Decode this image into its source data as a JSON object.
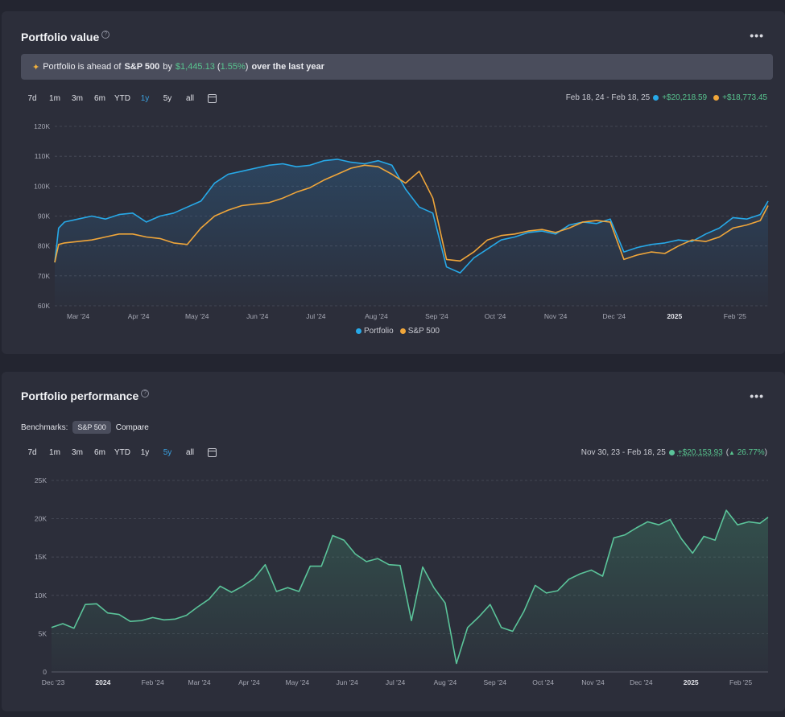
{
  "colors": {
    "portfolio": "#27a9e8",
    "sp500": "#f0a63a",
    "performance": "#5bc49a",
    "positive": "#58c58f",
    "active_range": "#3aa1e0"
  },
  "value_card": {
    "title": "Portfolio value",
    "help_icon": "question-circle-icon",
    "more_icon": "ellipsis-icon",
    "banner": {
      "icon": "party-popper-icon",
      "prefix": "Portfolio is ahead of",
      "benchmark": "S&P 500",
      "by": "by",
      "amount": "$1,445.13",
      "pct_open": "(",
      "pct": "1.55%",
      "pct_close": ")",
      "suffix": "over the last year"
    },
    "ranges": [
      "7d",
      "1m",
      "3m",
      "6m",
      "YTD",
      "1y",
      "5y",
      "all"
    ],
    "active_range": "1y",
    "date_range": "Feb 18, 24 - Feb 18, 25",
    "portfolio_change": "+$20,218.59",
    "sp500_change": "+$18,773.45",
    "legend": [
      "Portfolio",
      "S&P 500"
    ]
  },
  "perf_card": {
    "title": "Portfolio performance",
    "help_icon": "question-circle-icon",
    "more_icon": "ellipsis-icon",
    "benchmarks_label": "Benchmarks:",
    "benchmark_chip": "S&P 500",
    "compare_label": "Compare",
    "ranges": [
      "7d",
      "1m",
      "3m",
      "6m",
      "YTD",
      "1y",
      "5y",
      "all"
    ],
    "active_range": "5y",
    "date_range": "Nov 30, 23 - Feb 18, 25",
    "change": "+$20,153.93",
    "change_pct_open": "(",
    "change_icon": "triangle-up-icon",
    "change_pct": "26.77%",
    "change_pct_close": ")"
  },
  "chart_data": [
    {
      "type": "line",
      "title": "Portfolio value",
      "ylim": [
        60000,
        120000
      ],
      "y_ticks": [
        60000,
        70000,
        80000,
        90000,
        100000,
        110000,
        120000
      ],
      "y_tick_labels": [
        "60K",
        "70K",
        "80K",
        "90K",
        "100K",
        "110K",
        "120K"
      ],
      "x_tick_labels": [
        "Mar '24",
        "Apr '24",
        "May '24",
        "Jun '24",
        "Jul '24",
        "Aug '24",
        "Sep '24",
        "Oct '24",
        "Nov '24",
        "Dec '24",
        "2025",
        "Feb '25"
      ],
      "x_tick_dates": [
        "2024-03-01",
        "2024-04-01",
        "2024-05-01",
        "2024-06-01",
        "2024-07-01",
        "2024-08-01",
        "2024-09-01",
        "2024-10-01",
        "2024-11-01",
        "2024-12-01",
        "2025-01-01",
        "2025-02-01"
      ],
      "x_range": [
        "2024-02-18",
        "2025-02-18"
      ],
      "grid": true,
      "legend_position": "bottom-center",
      "series": [
        {
          "name": "Portfolio",
          "x": [
            "2024-02-18",
            "2024-02-20",
            "2024-02-23",
            "2024-03-01",
            "2024-03-08",
            "2024-03-15",
            "2024-03-22",
            "2024-03-29",
            "2024-04-05",
            "2024-04-12",
            "2024-04-19",
            "2024-04-26",
            "2024-05-03",
            "2024-05-10",
            "2024-05-17",
            "2024-05-24",
            "2024-05-31",
            "2024-06-07",
            "2024-06-14",
            "2024-06-21",
            "2024-06-28",
            "2024-07-05",
            "2024-07-12",
            "2024-07-19",
            "2024-07-26",
            "2024-08-02",
            "2024-08-09",
            "2024-08-16",
            "2024-08-23",
            "2024-08-30",
            "2024-09-06",
            "2024-09-13",
            "2024-09-20",
            "2024-09-27",
            "2024-10-04",
            "2024-10-11",
            "2024-10-18",
            "2024-10-25",
            "2024-11-01",
            "2024-11-08",
            "2024-11-15",
            "2024-11-22",
            "2024-11-29",
            "2024-12-06",
            "2024-12-13",
            "2024-12-20",
            "2024-12-27",
            "2025-01-03",
            "2025-01-10",
            "2025-01-17",
            "2025-01-24",
            "2025-01-31",
            "2025-02-07",
            "2025-02-14",
            "2025-02-18"
          ],
          "values": [
            74500,
            86000,
            88000,
            89000,
            90000,
            89000,
            90500,
            91000,
            88000,
            90000,
            91000,
            93000,
            95000,
            101000,
            104000,
            105000,
            106000,
            107000,
            107500,
            106500,
            107000,
            108500,
            109000,
            108000,
            107500,
            108500,
            107000,
            99000,
            93000,
            91000,
            73000,
            71000,
            76000,
            79000,
            82000,
            83000,
            84500,
            85000,
            84000,
            87000,
            88000,
            87500,
            89000,
            78000,
            79500,
            80500,
            81000,
            82000,
            81500,
            84000,
            86000,
            89500,
            89000,
            90500,
            95000
          ]
        },
        {
          "name": "S&P 500",
          "x": [
            "2024-02-18",
            "2024-02-20",
            "2024-02-23",
            "2024-03-01",
            "2024-03-08",
            "2024-03-15",
            "2024-03-22",
            "2024-03-29",
            "2024-04-05",
            "2024-04-12",
            "2024-04-19",
            "2024-04-26",
            "2024-05-03",
            "2024-05-10",
            "2024-05-17",
            "2024-05-24",
            "2024-05-31",
            "2024-06-07",
            "2024-06-14",
            "2024-06-21",
            "2024-06-28",
            "2024-07-05",
            "2024-07-12",
            "2024-07-19",
            "2024-07-26",
            "2024-08-02",
            "2024-08-09",
            "2024-08-16",
            "2024-08-23",
            "2024-08-30",
            "2024-09-06",
            "2024-09-13",
            "2024-09-20",
            "2024-09-27",
            "2024-10-04",
            "2024-10-11",
            "2024-10-18",
            "2024-10-25",
            "2024-11-01",
            "2024-11-08",
            "2024-11-15",
            "2024-11-22",
            "2024-11-29",
            "2024-12-06",
            "2024-12-13",
            "2024-12-20",
            "2024-12-27",
            "2025-01-03",
            "2025-01-10",
            "2025-01-17",
            "2025-01-24",
            "2025-01-31",
            "2025-02-07",
            "2025-02-14",
            "2025-02-18"
          ],
          "values": [
            74500,
            80500,
            81000,
            81500,
            82000,
            83000,
            84000,
            84000,
            83000,
            82500,
            81000,
            80500,
            86000,
            90000,
            92000,
            93500,
            94000,
            94500,
            96000,
            98000,
            99500,
            102000,
            104000,
            106000,
            107000,
            106500,
            104000,
            101000,
            105000,
            96000,
            75500,
            75000,
            78000,
            82000,
            83500,
            84000,
            85000,
            85500,
            84500,
            86000,
            88000,
            88500,
            88000,
            75500,
            77000,
            78000,
            77500,
            80000,
            82000,
            81500,
            83000,
            86000,
            87000,
            88500,
            93500
          ]
        }
      ]
    },
    {
      "type": "area",
      "title": "Portfolio performance",
      "ylim": [
        0,
        25000
      ],
      "y_ticks": [
        0,
        5000,
        10000,
        15000,
        20000,
        25000
      ],
      "y_tick_labels": [
        "0",
        "5K",
        "10K",
        "15K",
        "20K",
        "25K"
      ],
      "x_tick_labels": [
        "Dec '23",
        "2024",
        "Feb '24",
        "Mar '24",
        "Apr '24",
        "May '24",
        "Jun '24",
        "Jul '24",
        "Aug '24",
        "Sep '24",
        "Oct '24",
        "Nov '24",
        "Dec '24",
        "2025",
        "Feb '25"
      ],
      "x_tick_dates": [
        "2023-12-01",
        "2024-01-01",
        "2024-02-01",
        "2024-03-01",
        "2024-04-01",
        "2024-05-01",
        "2024-06-01",
        "2024-07-01",
        "2024-08-01",
        "2024-09-01",
        "2024-10-01",
        "2024-11-01",
        "2024-12-01",
        "2025-01-01",
        "2025-02-01"
      ],
      "x_range": [
        "2023-11-30",
        "2025-02-18"
      ],
      "grid": true,
      "series": [
        {
          "x": [
            "2023-11-30",
            "2023-12-07",
            "2023-12-14",
            "2023-12-21",
            "2023-12-28",
            "2024-01-04",
            "2024-01-11",
            "2024-01-18",
            "2024-01-25",
            "2024-02-01",
            "2024-02-08",
            "2024-02-15",
            "2024-02-22",
            "2024-02-29",
            "2024-03-07",
            "2024-03-14",
            "2024-03-21",
            "2024-03-28",
            "2024-04-04",
            "2024-04-11",
            "2024-04-18",
            "2024-04-25",
            "2024-05-02",
            "2024-05-09",
            "2024-05-16",
            "2024-05-23",
            "2024-05-30",
            "2024-06-06",
            "2024-06-13",
            "2024-06-20",
            "2024-06-27",
            "2024-07-04",
            "2024-07-11",
            "2024-07-18",
            "2024-07-25",
            "2024-08-01",
            "2024-08-08",
            "2024-08-15",
            "2024-08-22",
            "2024-08-29",
            "2024-09-05",
            "2024-09-12",
            "2024-09-19",
            "2024-09-26",
            "2024-10-03",
            "2024-10-10",
            "2024-10-17",
            "2024-10-24",
            "2024-10-31",
            "2024-11-07",
            "2024-11-14",
            "2024-11-21",
            "2024-11-28",
            "2024-12-05",
            "2024-12-12",
            "2024-12-19",
            "2024-12-26",
            "2025-01-02",
            "2025-01-09",
            "2025-01-16",
            "2025-01-23",
            "2025-01-30",
            "2025-02-06",
            "2025-02-13",
            "2025-02-18"
          ],
          "values": [
            5800,
            6300,
            5700,
            8800,
            8900,
            7700,
            7500,
            6600,
            6700,
            7100,
            6800,
            6900,
            7400,
            8500,
            9500,
            11200,
            10400,
            11200,
            12200,
            14000,
            10500,
            11000,
            10500,
            13800,
            13800,
            17800,
            17200,
            15400,
            14400,
            14800,
            14000,
            13900,
            6700,
            13700,
            11000,
            9000,
            1100,
            5800,
            7200,
            8800,
            5800,
            5300,
            7900,
            11300,
            10300,
            10600,
            12100,
            12800,
            13300,
            12500,
            17500,
            17900,
            18800,
            19600,
            19200,
            19900,
            17400,
            15500,
            17700,
            17200,
            21100,
            19200,
            19600,
            19400,
            20200
          ]
        }
      ]
    }
  ]
}
